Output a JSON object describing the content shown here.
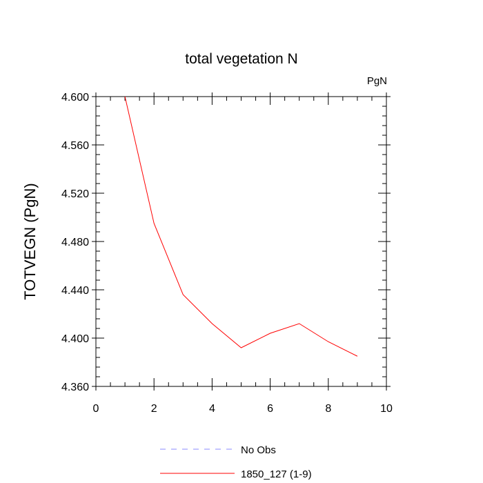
{
  "chart_data": {
    "type": "line",
    "title": "total vegetation N",
    "units_label": "PgN",
    "xlabel": "",
    "ylabel": "TOTVEGN  (PgN)",
    "xlim": [
      0,
      10
    ],
    "ylim": [
      4.36,
      4.6
    ],
    "x_ticks": [
      0,
      2,
      4,
      6,
      8,
      10
    ],
    "x_tick_labels": [
      "0",
      "2",
      "4",
      "6",
      "8",
      "10"
    ],
    "y_ticks": [
      4.36,
      4.4,
      4.44,
      4.48,
      4.52,
      4.56,
      4.6
    ],
    "y_tick_labels": [
      "4.360",
      "4.400",
      "4.440",
      "4.480",
      "4.520",
      "4.560",
      "4.600"
    ],
    "grid": false,
    "legend_position": "bottom",
    "series": [
      {
        "name": "1850_127 (1-9)",
        "color": "#ff0000",
        "style": "solid",
        "x": [
          1,
          2,
          3,
          4,
          5,
          6,
          7,
          8,
          9
        ],
        "y": [
          4.6,
          4.495,
          4.436,
          4.412,
          4.392,
          4.404,
          4.412,
          4.397,
          4.385
        ]
      }
    ],
    "legend": [
      {
        "label": "No Obs",
        "color": "#8a8aff",
        "style": "dashed"
      },
      {
        "label": "1850_127 (1-9)",
        "color": "#ff0000",
        "style": "solid"
      }
    ]
  }
}
